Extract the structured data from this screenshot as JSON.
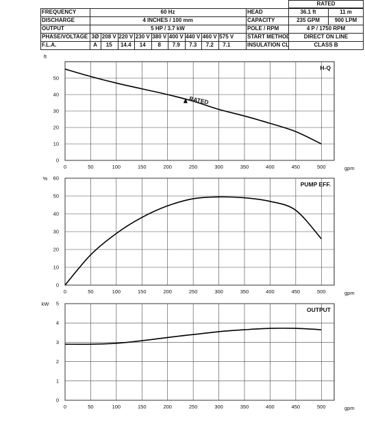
{
  "spec": {
    "frequency_label": "FREQUENCY",
    "frequency": "60 Hz",
    "discharge_label": "DISCHARGE",
    "discharge": "4 INCHES / 100 mm",
    "output_label": "OUTPUT",
    "output": "5 HP / 3.7 kW",
    "phase_label": "PHASE/VOLTAGE",
    "phase": "3Ø",
    "voltages": [
      "208 V",
      "220 V",
      "230 V",
      "380 V",
      "400 V",
      "440 V",
      "460 V",
      "575 V"
    ],
    "fla_label": "F.L.A.",
    "fla_unit": "A",
    "fla": [
      "15",
      "14.4",
      "14",
      "8",
      "7.9",
      "7.3",
      "7.2",
      "7.1"
    ],
    "rated_label": "RATED",
    "head_label": "HEAD",
    "head_ft": "36.1 ft",
    "head_m": "11 m",
    "capacity_label": "CAPACITY",
    "capacity_gpm": "235 GPM",
    "capacity_lpm": "900 LPM",
    "pole_label": "POLE / RPM",
    "pole": "4 P / 1750 RPM",
    "start_label": "START METHOD",
    "start": "DIRECT ON LINE",
    "insulation_label": "INSULATION CLASS",
    "insulation": "CLASS B"
  },
  "chart_data": [
    {
      "type": "line",
      "title": "H-Q",
      "ylabel": "ft",
      "xlabel": "gpm",
      "xlim": [
        0,
        525
      ],
      "ylim": [
        0,
        60
      ],
      "xticks": [
        0,
        50,
        100,
        150,
        200,
        250,
        300,
        350,
        400,
        450,
        500
      ],
      "yticks": [
        0,
        10,
        20,
        30,
        40,
        50
      ],
      "grid": true,
      "annotation": {
        "text": "RATED",
        "x": 235,
        "y": 36.1
      },
      "series": [
        {
          "x": [
            0,
            50,
            100,
            150,
            200,
            250,
            300,
            350,
            400,
            450,
            500
          ],
          "y": [
            55.5,
            51,
            47,
            43.5,
            40,
            36,
            31,
            27,
            22.5,
            17.5,
            10
          ]
        }
      ]
    },
    {
      "type": "line",
      "title": "PUMP EFF.",
      "ylabel": "%",
      "xlabel": "gpm",
      "xlim": [
        0,
        525
      ],
      "ylim": [
        0,
        60
      ],
      "xticks": [
        0,
        50,
        100,
        150,
        200,
        250,
        300,
        350,
        400,
        450,
        500
      ],
      "yticks": [
        0,
        10,
        20,
        30,
        40,
        50,
        60
      ],
      "grid": true,
      "series": [
        {
          "x": [
            0,
            50,
            100,
            150,
            200,
            250,
            300,
            350,
            400,
            450,
            500
          ],
          "y": [
            0,
            17,
            29,
            38,
            44.5,
            48.5,
            49.5,
            49,
            47,
            42,
            26
          ]
        }
      ]
    },
    {
      "type": "line",
      "title": "OUTPUT",
      "ylabel": "kW",
      "xlabel": "gpm",
      "xlim": [
        0,
        525
      ],
      "ylim": [
        0,
        5
      ],
      "xticks": [
        0,
        50,
        100,
        150,
        200,
        250,
        300,
        350,
        400,
        450,
        500
      ],
      "yticks": [
        0,
        1,
        2,
        3,
        4,
        5
      ],
      "grid": true,
      "series": [
        {
          "x": [
            0,
            50,
            100,
            150,
            200,
            250,
            300,
            350,
            400,
            450,
            500
          ],
          "y": [
            2.9,
            2.9,
            2.95,
            3.08,
            3.25,
            3.4,
            3.55,
            3.65,
            3.72,
            3.72,
            3.65
          ]
        }
      ]
    }
  ]
}
